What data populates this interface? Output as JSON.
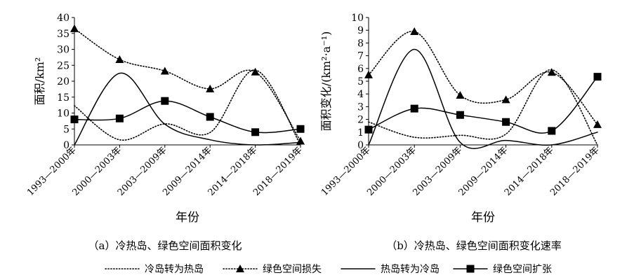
{
  "chart_data": [
    {
      "type": "line",
      "caption": "（a）冷热岛、绿色空间面积变化",
      "xlabel": "年份",
      "ylabel": "面积/km²",
      "categories": [
        "1993—2000年",
        "2000—2003年",
        "2003—2009年",
        "2009—2014年",
        "2014—2018年",
        "2018—2019年"
      ],
      "ylim": [
        0,
        40
      ],
      "yticks": [
        0,
        5,
        10,
        15,
        20,
        25,
        30,
        35,
        40
      ],
      "series": [
        {
          "name": "冷岛转为热岛",
          "style": "dotted",
          "marker": "none",
          "values": [
            12.3,
            1.6,
            6.6,
            3.9,
            23.5,
            0
          ]
        },
        {
          "name": "绿色空间损失",
          "style": "dotted",
          "marker": "triangle",
          "values": [
            36.5,
            26.8,
            23.2,
            17.6,
            22.9,
            1.2
          ]
        },
        {
          "name": "热岛转为冷岛",
          "style": "solid",
          "marker": "none",
          "values": [
            0,
            22.5,
            6.5,
            1.6,
            0,
            0.8
          ]
        },
        {
          "name": "绿色空间扩张",
          "style": "solid",
          "marker": "square",
          "values": [
            8.0,
            8.3,
            13.8,
            8.8,
            4.0,
            5.0
          ]
        }
      ]
    },
    {
      "type": "line",
      "caption": "（b）冷热岛、绿色空间面积变化速率",
      "xlabel": "年份",
      "ylabel": "面积变化/(km²·a⁻¹)",
      "categories": [
        "1993—2000年",
        "2000—2003年",
        "2003—2009年",
        "2009—2014年",
        "2014—2018年",
        "2018—2019年"
      ],
      "ylim": [
        0,
        10
      ],
      "yticks": [
        0,
        1,
        2,
        3,
        4,
        5,
        6,
        7,
        8,
        9,
        10
      ],
      "series": [
        {
          "name": "冷岛转为热岛",
          "style": "dotted",
          "marker": "none",
          "values": [
            1.8,
            0.6,
            0.75,
            0.85,
            5.9,
            0
          ]
        },
        {
          "name": "绿色空间损失",
          "style": "dotted",
          "marker": "triangle",
          "values": [
            5.5,
            8.9,
            3.9,
            3.55,
            5.7,
            1.6
          ]
        },
        {
          "name": "热岛转为冷岛",
          "style": "solid",
          "marker": "none",
          "values": [
            0,
            7.5,
            0.2,
            0.35,
            0,
            1.0
          ]
        },
        {
          "name": "绿色空间扩张",
          "style": "solid",
          "marker": "square",
          "values": [
            1.2,
            2.85,
            2.35,
            1.8,
            1.1,
            5.35
          ]
        }
      ]
    }
  ],
  "legend": [
    {
      "label": "冷岛转为热岛",
      "style": "dotted",
      "marker": "none"
    },
    {
      "label": "绿色空间损失",
      "style": "dotted",
      "marker": "triangle"
    },
    {
      "label": "热岛转为冷岛",
      "style": "solid",
      "marker": "none"
    },
    {
      "label": "绿色空间扩张",
      "style": "solid",
      "marker": "square"
    }
  ],
  "colors": {
    "ink": "#000000",
    "background": "#ffffff"
  }
}
